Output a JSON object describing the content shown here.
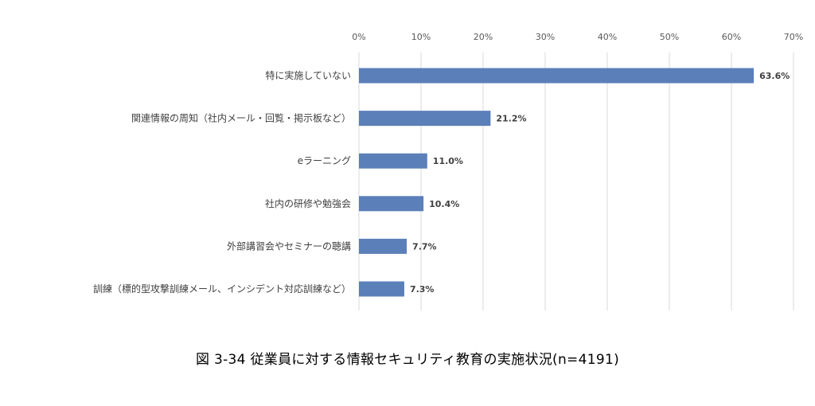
{
  "chart_data": {
    "type": "bar",
    "orientation": "horizontal",
    "categories": [
      "特に実施していない",
      "関連情報の周知（社内メール・回覧・掲示板など）",
      "eラーニング",
      "社内の研修や勉強会",
      "外部講習会やセミナーの聴講",
      "訓練（標的型攻撃訓練メール、インシデント対応訓練など）"
    ],
    "values": [
      63.6,
      21.2,
      11.0,
      10.4,
      7.7,
      7.3
    ],
    "data_labels": [
      "63.6%",
      "21.2%",
      "11.0%",
      "10.4%",
      "7.7%",
      "7.3%"
    ],
    "x_ticks": [
      "0%",
      "10%",
      "20%",
      "30%",
      "40%",
      "50%",
      "60%",
      "70%"
    ],
    "xlim": [
      0,
      70
    ],
    "x_axis_position": "top",
    "grid": true,
    "bar_color": "#5b7fb9",
    "gridline_color": "#d9d9d9"
  },
  "caption": "図 3-34  従業員に対する情報セキュリティ教育の実施状況(n=4191)"
}
